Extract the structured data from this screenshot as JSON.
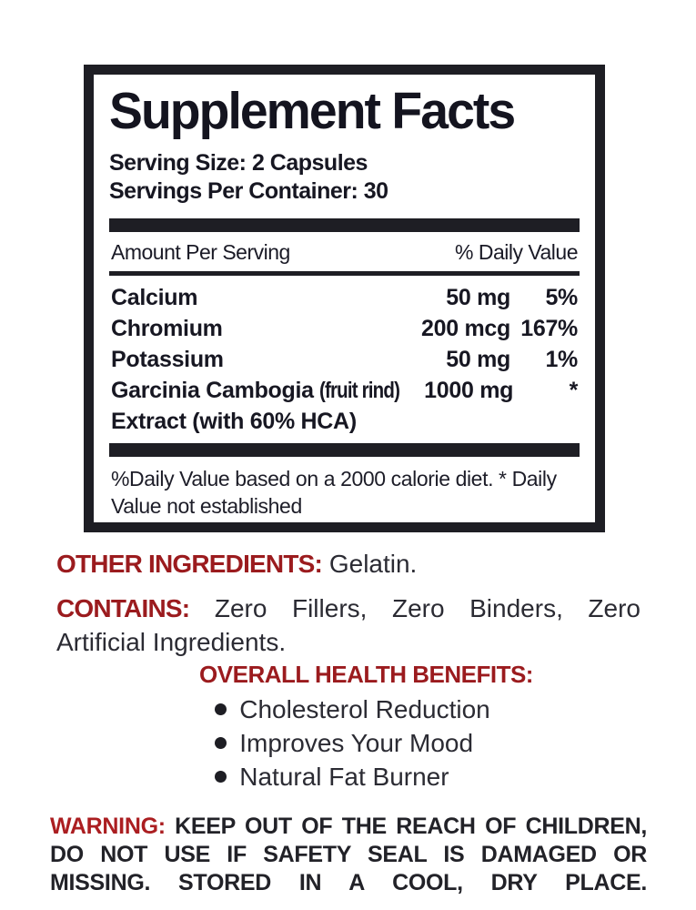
{
  "colors": {
    "ink": "#1e1e24",
    "heading_red": "#9b1b1e",
    "warning_red": "#ab1e21"
  },
  "panel": {
    "title": "Supplement Facts",
    "serving_size": "Serving Size: 2 Capsules",
    "servings_per_container": "Servings Per Container: 30",
    "header": {
      "left": "Amount Per Serving",
      "right": "% Daily Value"
    },
    "rows": [
      {
        "name": "Calcium",
        "amount": "50 mg",
        "dv": "5%"
      },
      {
        "name": "Chromium",
        "amount": "200 mcg",
        "dv": "167%"
      },
      {
        "name": "Potassium",
        "amount": "50 mg",
        "dv": "1%"
      },
      {
        "name": "Garcinia Cambogia ",
        "name_note": "(fruit rind)",
        "name_line2": "Extract (with 60% HCA)",
        "amount": "1000 mg",
        "dv": "*"
      }
    ],
    "footnote": "%Daily Value based on a 2000 calorie diet. * Daily Value not established"
  },
  "sections": {
    "other_ingredients": {
      "label": "OTHER INGREDIENTS:",
      "text": " Gelatin."
    },
    "contains": {
      "label": "CONTAINS:",
      "text": "  Zero Fillers, Zero Binders, Zero Artificial Ingredients."
    },
    "benefits": {
      "heading": "OVERALL HEALTH BENEFITS:",
      "items": [
        "Cholesterol Reduction",
        "Improves Your Mood",
        "Natural Fat Burner"
      ]
    },
    "warning": {
      "label": "WARNING:",
      "text": " KEEP OUT OF THE REACH OF CHILDREN, DO NOT USE IF SAFETY SEAL IS DAMAGED OR MISSING. STORED IN A COOL, DRY PLACE."
    }
  }
}
